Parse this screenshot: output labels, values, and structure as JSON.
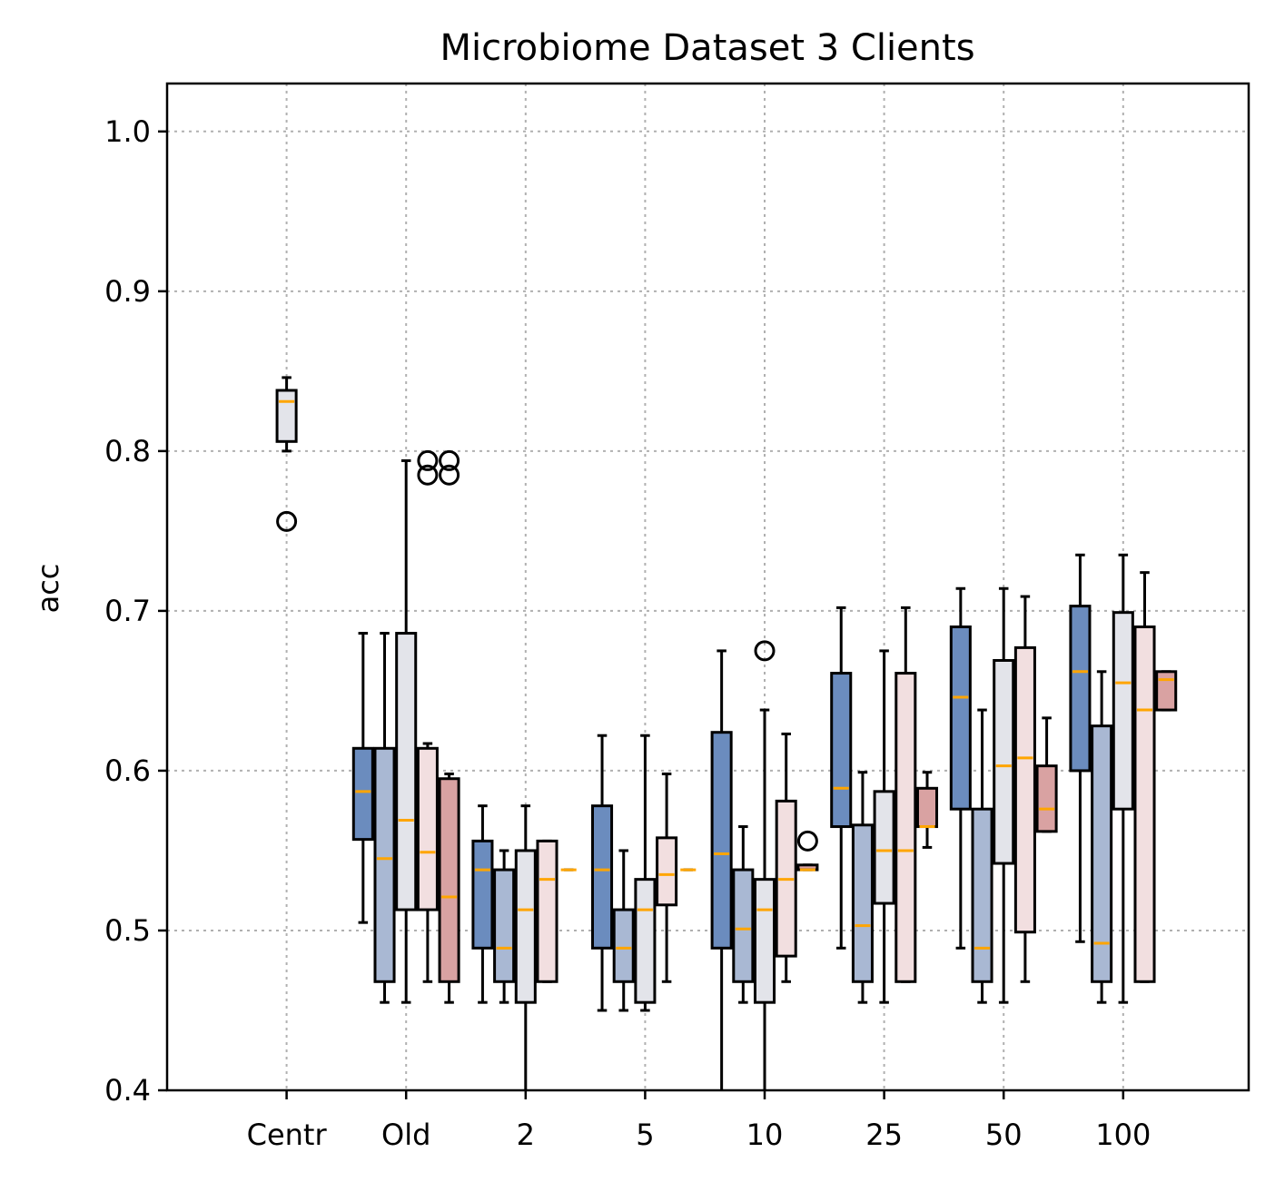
{
  "chart_data": {
    "type": "box",
    "title": "Microbiome Dataset 3 Clients",
    "xlabel": "",
    "ylabel": "acc",
    "ylim": [
      0.4,
      1.03
    ],
    "xlim": [
      -1.0,
      8.05
    ],
    "grid": true,
    "yticks": [
      0.4,
      0.5,
      0.6,
      0.7,
      0.8,
      0.9,
      1.0
    ],
    "ytick_labels": [
      "0.4",
      "0.5",
      "0.6",
      "0.7",
      "0.8",
      "0.9",
      "1.0"
    ],
    "categories": [
      "Centr",
      "Old",
      "2",
      "5",
      "10",
      "25",
      "50",
      "100"
    ],
    "colors": [
      "#6b8cbe",
      "#a9b8d3",
      "#e3e4ea",
      "#f2dfe0",
      "#d9a2a2"
    ],
    "boxes": [
      {
        "x": 0.0,
        "color_index": 2,
        "whislo": 0.8,
        "q1": 0.806,
        "med": 0.831,
        "q3": 0.838,
        "whishi": 0.846,
        "fliers": [
          0.756
        ]
      },
      {
        "x": 0.64,
        "color_index": 0,
        "whislo": 0.505,
        "q1": 0.557,
        "med": 0.587,
        "q3": 0.614,
        "whishi": 0.686,
        "fliers": []
      },
      {
        "x": 0.82,
        "color_index": 1,
        "whislo": 0.455,
        "q1": 0.468,
        "med": 0.545,
        "q3": 0.614,
        "whishi": 0.686,
        "fliers": []
      },
      {
        "x": 1.0,
        "color_index": 2,
        "whislo": 0.455,
        "q1": 0.513,
        "med": 0.569,
        "q3": 0.686,
        "whishi": 0.794,
        "fliers": []
      },
      {
        "x": 1.18,
        "color_index": 3,
        "whislo": 0.468,
        "q1": 0.513,
        "med": 0.549,
        "q3": 0.614,
        "whishi": 0.617,
        "fliers": [
          0.785,
          0.794
        ]
      },
      {
        "x": 1.36,
        "color_index": 4,
        "whislo": 0.455,
        "q1": 0.468,
        "med": 0.521,
        "q3": 0.595,
        "whishi": 0.598,
        "fliers": [
          0.785,
          0.794
        ]
      },
      {
        "x": 1.64,
        "color_index": 0,
        "whislo": 0.455,
        "q1": 0.489,
        "med": 0.538,
        "q3": 0.556,
        "whishi": 0.578,
        "fliers": []
      },
      {
        "x": 1.82,
        "color_index": 1,
        "whislo": 0.455,
        "q1": 0.468,
        "med": 0.489,
        "q3": 0.538,
        "whishi": 0.55,
        "fliers": []
      },
      {
        "x": 2.0,
        "color_index": 2,
        "whislo": 0.4,
        "q1": 0.455,
        "med": 0.513,
        "q3": 0.55,
        "whishi": 0.578,
        "fliers": []
      },
      {
        "x": 2.18,
        "color_index": 3,
        "whislo": 0.468,
        "q1": 0.468,
        "med": 0.532,
        "q3": 0.556,
        "whishi": 0.556,
        "fliers": []
      },
      {
        "x": 2.36,
        "color_index": 4,
        "whislo": 0.538,
        "q1": 0.538,
        "med": 0.538,
        "q3": 0.538,
        "whishi": 0.538,
        "fliers": []
      },
      {
        "x": 2.64,
        "color_index": 0,
        "whislo": 0.45,
        "q1": 0.489,
        "med": 0.538,
        "q3": 0.578,
        "whishi": 0.622,
        "fliers": []
      },
      {
        "x": 2.82,
        "color_index": 1,
        "whislo": 0.45,
        "q1": 0.468,
        "med": 0.489,
        "q3": 0.513,
        "whishi": 0.55,
        "fliers": []
      },
      {
        "x": 3.0,
        "color_index": 2,
        "whislo": 0.45,
        "q1": 0.455,
        "med": 0.513,
        "q3": 0.532,
        "whishi": 0.622,
        "fliers": []
      },
      {
        "x": 3.18,
        "color_index": 3,
        "whislo": 0.468,
        "q1": 0.516,
        "med": 0.535,
        "q3": 0.558,
        "whishi": 0.598,
        "fliers": []
      },
      {
        "x": 3.36,
        "color_index": 4,
        "whislo": 0.538,
        "q1": 0.538,
        "med": 0.538,
        "q3": 0.538,
        "whishi": 0.538,
        "fliers": []
      },
      {
        "x": 3.64,
        "color_index": 0,
        "whislo": 0.4,
        "q1": 0.489,
        "med": 0.548,
        "q3": 0.624,
        "whishi": 0.675,
        "fliers": []
      },
      {
        "x": 3.82,
        "color_index": 1,
        "whislo": 0.455,
        "q1": 0.468,
        "med": 0.501,
        "q3": 0.538,
        "whishi": 0.565,
        "fliers": []
      },
      {
        "x": 4.0,
        "color_index": 2,
        "whislo": 0.4,
        "q1": 0.455,
        "med": 0.513,
        "q3": 0.532,
        "whishi": 0.638,
        "fliers": [
          0.675
        ]
      },
      {
        "x": 4.18,
        "color_index": 3,
        "whislo": 0.468,
        "q1": 0.484,
        "med": 0.532,
        "q3": 0.581,
        "whishi": 0.623,
        "fliers": []
      },
      {
        "x": 4.36,
        "color_index": 4,
        "whislo": 0.538,
        "q1": 0.538,
        "med": 0.538,
        "q3": 0.541,
        "whishi": 0.541,
        "fliers": [
          0.556
        ]
      },
      {
        "x": 4.64,
        "color_index": 0,
        "whislo": 0.489,
        "q1": 0.565,
        "med": 0.589,
        "q3": 0.661,
        "whishi": 0.702,
        "fliers": []
      },
      {
        "x": 4.82,
        "color_index": 1,
        "whislo": 0.455,
        "q1": 0.468,
        "med": 0.503,
        "q3": 0.566,
        "whishi": 0.599,
        "fliers": []
      },
      {
        "x": 5.0,
        "color_index": 2,
        "whislo": 0.455,
        "q1": 0.517,
        "med": 0.55,
        "q3": 0.587,
        "whishi": 0.675,
        "fliers": []
      },
      {
        "x": 5.18,
        "color_index": 3,
        "whislo": 0.468,
        "q1": 0.468,
        "med": 0.55,
        "q3": 0.661,
        "whishi": 0.702,
        "fliers": []
      },
      {
        "x": 5.36,
        "color_index": 4,
        "whislo": 0.552,
        "q1": 0.565,
        "med": 0.565,
        "q3": 0.589,
        "whishi": 0.599,
        "fliers": []
      },
      {
        "x": 5.64,
        "color_index": 0,
        "whislo": 0.489,
        "q1": 0.576,
        "med": 0.646,
        "q3": 0.69,
        "whishi": 0.714,
        "fliers": []
      },
      {
        "x": 5.82,
        "color_index": 1,
        "whislo": 0.455,
        "q1": 0.468,
        "med": 0.489,
        "q3": 0.576,
        "whishi": 0.638,
        "fliers": []
      },
      {
        "x": 6.0,
        "color_index": 2,
        "whislo": 0.455,
        "q1": 0.542,
        "med": 0.603,
        "q3": 0.669,
        "whishi": 0.714,
        "fliers": []
      },
      {
        "x": 6.18,
        "color_index": 3,
        "whislo": 0.468,
        "q1": 0.499,
        "med": 0.608,
        "q3": 0.677,
        "whishi": 0.709,
        "fliers": []
      },
      {
        "x": 6.36,
        "color_index": 4,
        "whislo": 0.562,
        "q1": 0.562,
        "med": 0.576,
        "q3": 0.603,
        "whishi": 0.633,
        "fliers": []
      },
      {
        "x": 6.64,
        "color_index": 0,
        "whislo": 0.493,
        "q1": 0.6,
        "med": 0.662,
        "q3": 0.703,
        "whishi": 0.735,
        "fliers": []
      },
      {
        "x": 6.82,
        "color_index": 1,
        "whislo": 0.455,
        "q1": 0.468,
        "med": 0.492,
        "q3": 0.628,
        "whishi": 0.662,
        "fliers": []
      },
      {
        "x": 7.0,
        "color_index": 2,
        "whislo": 0.455,
        "q1": 0.576,
        "med": 0.655,
        "q3": 0.699,
        "whishi": 0.735,
        "fliers": []
      },
      {
        "x": 7.18,
        "color_index": 3,
        "whislo": 0.468,
        "q1": 0.468,
        "med": 0.638,
        "q3": 0.69,
        "whishi": 0.724,
        "fliers": []
      },
      {
        "x": 7.36,
        "color_index": 4,
        "whislo": 0.638,
        "q1": 0.638,
        "med": 0.657,
        "q3": 0.662,
        "whishi": 0.662,
        "fliers": []
      }
    ]
  }
}
